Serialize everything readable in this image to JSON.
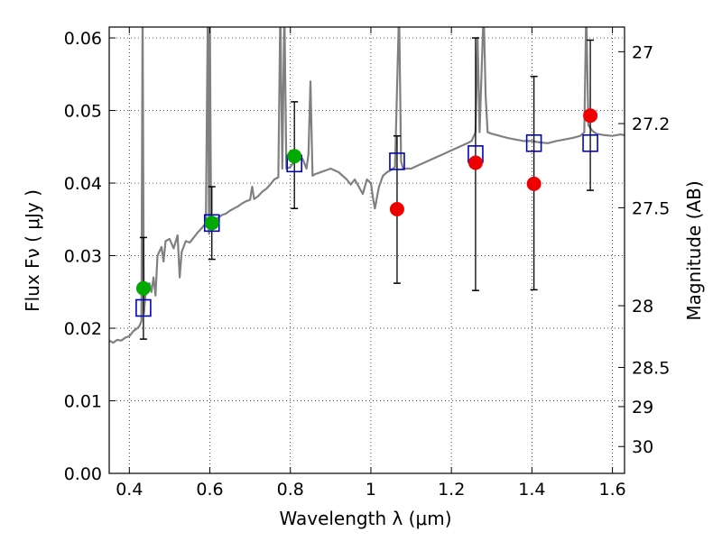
{
  "chart_data": {
    "type": "scatter",
    "xlabel": "Wavelength  λ (μm)",
    "ylabel": "Flux  Fν  ( μJy )",
    "y2label": "Magnitude (AB)",
    "xlim": [
      0.35,
      1.63
    ],
    "ylim": [
      0.0,
      0.0615
    ],
    "grid": true,
    "grid_style": "dotted",
    "x_ticks": [
      0.4,
      0.6,
      0.8,
      1.0,
      1.2,
      1.4,
      1.6
    ],
    "x_tick_labels": [
      "0.4",
      "0.6",
      "0.8",
      "1",
      "1.2",
      "1.4",
      "1.6"
    ],
    "y_ticks": [
      0.0,
      0.01,
      0.02,
      0.03,
      0.04,
      0.05,
      0.06
    ],
    "y_tick_labels": [
      "0.00",
      "0.01",
      "0.02",
      "0.03",
      "0.04",
      "0.05",
      "0.06"
    ],
    "y2_ticks": [
      {
        "label": "27",
        "flux": 0.0581
      },
      {
        "label": "27.2",
        "flux": 0.0482
      },
      {
        "label": "27.5",
        "flux": 0.0366
      },
      {
        "label": "28",
        "flux": 0.0231
      },
      {
        "label": "28.5",
        "flux": 0.0146
      },
      {
        "label": "29",
        "flux": 0.0092
      },
      {
        "label": "30",
        "flux": 0.0037
      }
    ],
    "colors": {
      "model": "#808080",
      "observed_optical": "#00aa00",
      "observed_nir": "#ee0000",
      "model_photometry": "#0000cc",
      "errorbar": "#000000"
    },
    "series": [
      {
        "type": "line",
        "color": "#808080",
        "points": [
          [
            0.35,
            0.0183
          ],
          [
            0.36,
            0.018
          ],
          [
            0.37,
            0.0184
          ],
          [
            0.38,
            0.0183
          ],
          [
            0.39,
            0.0187
          ],
          [
            0.4,
            0.0189
          ],
          [
            0.41,
            0.0196
          ],
          [
            0.42,
            0.02
          ],
          [
            0.425,
            0.0203
          ],
          [
            0.43,
            0.021
          ],
          [
            0.433,
            0.064
          ],
          [
            0.436,
            0.022
          ],
          [
            0.44,
            0.0245
          ],
          [
            0.45,
            0.0262
          ],
          [
            0.455,
            0.025
          ],
          [
            0.46,
            0.027
          ],
          [
            0.465,
            0.0245
          ],
          [
            0.47,
            0.03
          ],
          [
            0.48,
            0.0312
          ],
          [
            0.485,
            0.0292
          ],
          [
            0.49,
            0.032
          ],
          [
            0.5,
            0.0323
          ],
          [
            0.51,
            0.031
          ],
          [
            0.52,
            0.0328
          ],
          [
            0.525,
            0.027
          ],
          [
            0.53,
            0.0305
          ],
          [
            0.54,
            0.032
          ],
          [
            0.55,
            0.0318
          ],
          [
            0.56,
            0.0325
          ],
          [
            0.57,
            0.0332
          ],
          [
            0.58,
            0.0338
          ],
          [
            0.59,
            0.0345
          ],
          [
            0.595,
            0.064
          ],
          [
            0.598,
            0.033
          ],
          [
            0.6,
            0.064
          ],
          [
            0.603,
            0.034
          ],
          [
            0.61,
            0.035
          ],
          [
            0.62,
            0.0352
          ],
          [
            0.63,
            0.0356
          ],
          [
            0.64,
            0.0358
          ],
          [
            0.65,
            0.0362
          ],
          [
            0.66,
            0.0365
          ],
          [
            0.67,
            0.0368
          ],
          [
            0.68,
            0.0372
          ],
          [
            0.69,
            0.0375
          ],
          [
            0.7,
            0.0377
          ],
          [
            0.705,
            0.0395
          ],
          [
            0.71,
            0.0378
          ],
          [
            0.72,
            0.0382
          ],
          [
            0.73,
            0.0388
          ],
          [
            0.74,
            0.0392
          ],
          [
            0.75,
            0.0398
          ],
          [
            0.76,
            0.0405
          ],
          [
            0.77,
            0.0408
          ],
          [
            0.775,
            0.064
          ],
          [
            0.78,
            0.042
          ],
          [
            0.785,
            0.064
          ],
          [
            0.79,
            0.042
          ],
          [
            0.8,
            0.0422
          ],
          [
            0.81,
            0.043
          ],
          [
            0.82,
            0.0432
          ],
          [
            0.83,
            0.0434
          ],
          [
            0.84,
            0.042
          ],
          [
            0.845,
            0.044
          ],
          [
            0.85,
            0.054
          ],
          [
            0.855,
            0.041
          ],
          [
            0.86,
            0.0412
          ],
          [
            0.87,
            0.0414
          ],
          [
            0.88,
            0.0416
          ],
          [
            0.89,
            0.0418
          ],
          [
            0.9,
            0.042
          ],
          [
            0.92,
            0.0415
          ],
          [
            0.93,
            0.041
          ],
          [
            0.94,
            0.0405
          ],
          [
            0.95,
            0.0398
          ],
          [
            0.96,
            0.0405
          ],
          [
            0.97,
            0.0395
          ],
          [
            0.98,
            0.0385
          ],
          [
            0.99,
            0.0405
          ],
          [
            1.0,
            0.04
          ],
          [
            1.005,
            0.038
          ],
          [
            1.01,
            0.0365
          ],
          [
            1.02,
            0.0395
          ],
          [
            1.03,
            0.041
          ],
          [
            1.04,
            0.0415
          ],
          [
            1.05,
            0.0418
          ],
          [
            1.06,
            0.0422
          ],
          [
            1.07,
            0.064
          ],
          [
            1.075,
            0.043
          ],
          [
            1.08,
            0.042
          ],
          [
            1.09,
            0.042
          ],
          [
            1.1,
            0.042
          ],
          [
            1.12,
            0.0425
          ],
          [
            1.14,
            0.043
          ],
          [
            1.16,
            0.0435
          ],
          [
            1.18,
            0.044
          ],
          [
            1.2,
            0.0445
          ],
          [
            1.22,
            0.045
          ],
          [
            1.24,
            0.0455
          ],
          [
            1.25,
            0.0458
          ],
          [
            1.26,
            0.047
          ],
          [
            1.265,
            0.06
          ],
          [
            1.27,
            0.047
          ],
          [
            1.28,
            0.064
          ],
          [
            1.285,
            0.052
          ],
          [
            1.29,
            0.047
          ],
          [
            1.3,
            0.0468
          ],
          [
            1.32,
            0.0465
          ],
          [
            1.34,
            0.0462
          ],
          [
            1.36,
            0.046
          ],
          [
            1.38,
            0.0458
          ],
          [
            1.4,
            0.0458
          ],
          [
            1.42,
            0.0456
          ],
          [
            1.44,
            0.0455
          ],
          [
            1.46,
            0.0458
          ],
          [
            1.48,
            0.046
          ],
          [
            1.5,
            0.0462
          ],
          [
            1.52,
            0.0465
          ],
          [
            1.53,
            0.047
          ],
          [
            1.535,
            0.064
          ],
          [
            1.54,
            0.048
          ],
          [
            1.55,
            0.0472
          ],
          [
            1.56,
            0.0468
          ],
          [
            1.58,
            0.0466
          ],
          [
            1.6,
            0.0465
          ],
          [
            1.62,
            0.0467
          ],
          [
            1.63,
            0.0466
          ]
        ]
      },
      {
        "type": "errorbar",
        "color": "#000000",
        "points": [
          {
            "x": 0.435,
            "low": 0.0185,
            "high": 0.0325
          },
          {
            "x": 0.605,
            "low": 0.0295,
            "high": 0.0395
          },
          {
            "x": 0.81,
            "low": 0.0365,
            "high": 0.0512
          },
          {
            "x": 1.065,
            "low": 0.0262,
            "high": 0.0465
          },
          {
            "x": 1.26,
            "low": 0.0252,
            "high": 0.06
          },
          {
            "x": 1.405,
            "low": 0.0253,
            "high": 0.0547
          },
          {
            "x": 1.545,
            "low": 0.039,
            "high": 0.0597
          }
        ]
      },
      {
        "type": "scatter",
        "marker": "square-open",
        "color": "#0000cc",
        "points": [
          [
            0.435,
            0.0228
          ],
          [
            0.605,
            0.0345
          ],
          [
            0.81,
            0.0427
          ],
          [
            1.065,
            0.043
          ],
          [
            1.26,
            0.044
          ],
          [
            1.405,
            0.0455
          ],
          [
            1.545,
            0.0455
          ]
        ]
      },
      {
        "type": "scatter",
        "marker": "circle",
        "color": "#00aa00",
        "points": [
          [
            0.435,
            0.0255
          ],
          [
            0.605,
            0.0345
          ],
          [
            0.81,
            0.0437
          ]
        ]
      },
      {
        "type": "scatter",
        "marker": "circle",
        "color": "#ee0000",
        "points": [
          [
            1.065,
            0.0364
          ],
          [
            1.26,
            0.0428
          ],
          [
            1.405,
            0.0399
          ],
          [
            1.545,
            0.0493
          ]
        ]
      }
    ]
  }
}
